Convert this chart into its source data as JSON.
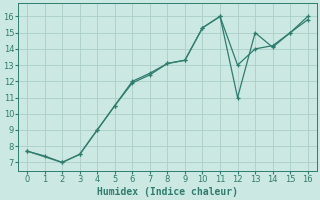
{
  "series1_x": [
    0,
    1,
    2,
    3,
    4,
    5,
    6,
    7,
    8,
    9,
    10,
    11,
    12,
    13,
    14,
    15,
    16
  ],
  "series1_y": [
    7.7,
    7.4,
    7.0,
    7.5,
    9.0,
    10.5,
    11.9,
    12.4,
    13.1,
    13.3,
    15.3,
    16.0,
    11.0,
    15.0,
    14.1,
    15.0,
    15.8
  ],
  "series2_x": [
    0,
    2,
    3,
    4,
    5,
    6,
    7,
    8,
    9,
    10,
    11,
    12,
    13,
    14,
    15,
    16
  ],
  "series2_y": [
    7.7,
    7.0,
    7.5,
    9.0,
    10.5,
    12.0,
    12.5,
    13.1,
    13.3,
    15.3,
    16.0,
    13.0,
    14.0,
    14.2,
    15.0,
    16.0
  ],
  "color": "#2e7d6e",
  "bg_color": "#cce8e2",
  "grid_color": "#aacfc8",
  "xlabel": "Humidex (Indice chaleur)",
  "xlim": [
    -0.5,
    16.5
  ],
  "ylim": [
    6.5,
    16.8
  ],
  "xticks": [
    0,
    1,
    2,
    3,
    4,
    5,
    6,
    7,
    8,
    9,
    10,
    11,
    12,
    13,
    14,
    15,
    16
  ],
  "yticks": [
    7,
    8,
    9,
    10,
    11,
    12,
    13,
    14,
    15,
    16
  ],
  "tick_fontsize": 6,
  "xlabel_fontsize": 7
}
